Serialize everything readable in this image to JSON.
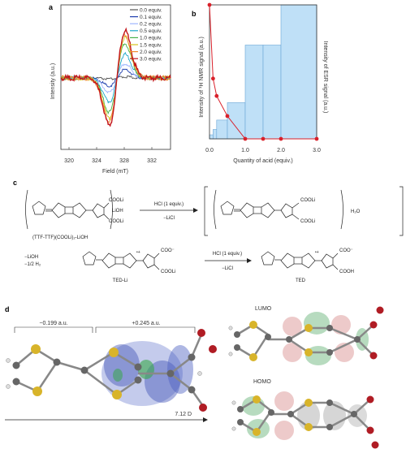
{
  "panel_a": {
    "label": "a",
    "xlabel": "Field (mT)",
    "ylabel": "Intensity (a.u.)",
    "xticks": [
      "320",
      "324",
      "328",
      "332"
    ],
    "legend": [
      {
        "name": "0.0 equiv.",
        "color": "#555555"
      },
      {
        "name": "0.1 equiv.",
        "color": "#1f3fae"
      },
      {
        "name": "0.2 equiv.",
        "color": "#9fb6ff"
      },
      {
        "name": "0.5 equiv.",
        "color": "#1aa7c9"
      },
      {
        "name": "1.0 equiv.",
        "color": "#46b24a"
      },
      {
        "name": "1.5 equiv.",
        "color": "#d6c31c"
      },
      {
        "name": "2.0 equiv.",
        "color": "#f28a2e"
      },
      {
        "name": "3.0 equiv.",
        "color": "#c4161c"
      }
    ]
  },
  "panel_b": {
    "label": "b",
    "xlabel": "Quantity of acid (equiv.)",
    "ylabel_left": "Intensity of ¹H NMR signal (a.u.)",
    "ylabel_right": "Intensity of ESR signal (a.u.)",
    "xticks": [
      "0.0",
      "1.0",
      "2.0",
      "3.0"
    ],
    "bar_color": "#bfe0f7",
    "line_color": "#d9202a"
  },
  "chart_data": {
    "type": "bar",
    "x_edges": [
      0.0,
      0.1,
      0.2,
      0.5,
      1.0,
      1.5,
      2.0,
      3.0
    ],
    "esr_values": [
      0.03,
      0.07,
      0.14,
      0.27,
      0.7,
      0.7,
      1.0
    ],
    "nmr_x": [
      0.0,
      0.1,
      0.2,
      0.5,
      1.0,
      1.5,
      2.0,
      3.0
    ],
    "nmr_y": [
      1.0,
      0.45,
      0.32,
      0.17,
      0.0,
      0.0,
      0.0,
      0.0
    ],
    "xlim": [
      0,
      3
    ],
    "ylim": [
      0,
      1
    ]
  },
  "panel_c": {
    "label": "c",
    "comp1": "(TTF-TTF)(COOLi)₂-LiOH",
    "lioh": "LiOH",
    "arrow1_top": "HCl (1 equiv.)",
    "arrow1_bottom": "−LiCl",
    "h2o": "H₂O",
    "lioh_loss": "−LiOH",
    "h2_loss": "−1/2 H₂",
    "ted_li": "TED-Li",
    "arrow2_top": "HCl (1 equiv.)",
    "arrow2_bottom": "−LiCl",
    "ted": "TED",
    "cool_li": "COOLi",
    "coo": "COO⁻",
    "cooh": "COOH",
    "s": "S",
    "radical": "•+"
  },
  "panel_d": {
    "label": "d",
    "charge_left": "−0.199 a.u.",
    "charge_right": "+0.245 a.u.",
    "dipole": "7.12 D",
    "lumo": "LUMO",
    "homo": "HOMO"
  }
}
